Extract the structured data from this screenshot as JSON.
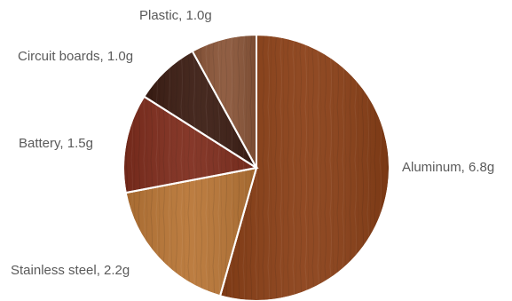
{
  "chart_data": {
    "type": "pie",
    "start_angle_deg": 0,
    "direction": "clockwise",
    "slices": [
      {
        "label": "Aluminum, 6.8g",
        "name": "Aluminum",
        "value": 6.8,
        "color": "#8a3f16"
      },
      {
        "label": "Stainless steel, 2.2g",
        "name": "Stainless steel",
        "value": 2.2,
        "color": "#b87535"
      },
      {
        "label": "Battery, 1.5g",
        "name": "Battery",
        "value": 1.5,
        "color": "#7e2c1c"
      },
      {
        "label": "Circuit boards, 1.0g",
        "name": "Circuit boards",
        "value": 1.0,
        "color": "#3b1c12"
      },
      {
        "label": "Plastic, 1.0g",
        "name": "Plastic",
        "value": 1.0,
        "color": "#8a5538"
      }
    ]
  }
}
